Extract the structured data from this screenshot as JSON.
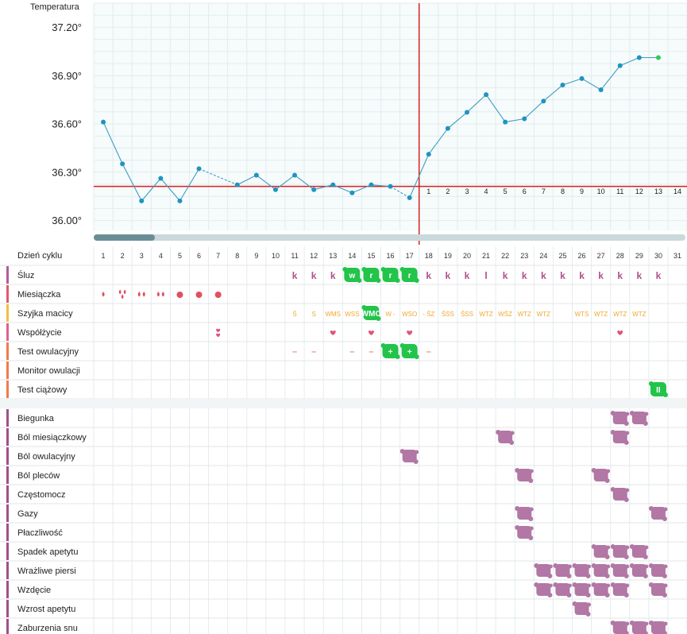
{
  "chart_data": {
    "type": "line",
    "ylabel": "Temperatura",
    "y_ticks": [
      "37.20°",
      "36.90°",
      "36.60°",
      "36.30°",
      "36.00°"
    ],
    "y_tick_values": [
      37.2,
      36.9,
      36.6,
      36.3,
      36.0
    ],
    "ylim": [
      35.93,
      37.33
    ],
    "x": [
      1,
      2,
      3,
      4,
      5,
      6,
      7,
      8,
      9,
      10,
      11,
      12,
      13,
      14,
      15,
      16,
      17,
      18,
      19,
      20,
      21,
      22,
      23,
      24,
      25,
      26,
      27,
      28,
      29,
      30,
      31
    ],
    "values": [
      36.61,
      36.35,
      36.12,
      36.26,
      36.12,
      36.32,
      null,
      36.22,
      36.28,
      36.19,
      36.28,
      36.19,
      36.22,
      36.17,
      36.22,
      36.21,
      36.14,
      36.41,
      36.57,
      36.67,
      36.78,
      36.61,
      36.63,
      36.74,
      36.84,
      36.88,
      36.81,
      36.96,
      37.01,
      37.01,
      null
    ],
    "dashed_segments": [
      [
        6,
        8
      ],
      [
        16,
        17
      ]
    ],
    "coverline": 36.21,
    "ovulation_day": 17,
    "post_ovulation_labels": [
      "1",
      "2",
      "3",
      "4",
      "5",
      "6",
      "7",
      "8",
      "9",
      "10",
      "11",
      "12",
      "13",
      "14"
    ],
    "line_color": "#3d9dbf",
    "point_color": "#1f93c3",
    "last_point_color": "#2ecc55",
    "marker_color": "#d62020",
    "grid": true
  },
  "scrollbar": {
    "thumb_color": "#6b8e96",
    "track_color": "#c9d9dc"
  },
  "table": {
    "header_label": "Dzień cyklu",
    "days": [
      "1",
      "2",
      "3",
      "4",
      "5",
      "6",
      "7",
      "8",
      "9",
      "10",
      "11",
      "12",
      "13",
      "14",
      "15",
      "16",
      "17",
      "18",
      "19",
      "20",
      "21",
      "22",
      "23",
      "24",
      "25",
      "26",
      "27",
      "28",
      "29",
      "30",
      "31"
    ],
    "rows": [
      {
        "label": "Śluz",
        "color": "#b05ca0"
      },
      {
        "label": "Miesiączka",
        "color": "#e05a6a"
      },
      {
        "label": "Szyjka macicy",
        "color": "#f0c040"
      },
      {
        "label": "Współżycie",
        "color": "#e06090"
      },
      {
        "label": "Test owulacyjny",
        "color": "#f07c4a"
      },
      {
        "label": "Monitor owulacji",
        "color": "#f07c4a"
      },
      {
        "label": "Test ciążowy",
        "color": "#f07c4a"
      }
    ],
    "symptom_rows": [
      {
        "label": "Biegunka",
        "color": "#a0508a"
      },
      {
        "label": "Ból miesiączkowy",
        "color": "#a0508a"
      },
      {
        "label": "Ból owulacyjny",
        "color": "#a0508a"
      },
      {
        "label": "Ból pleców",
        "color": "#a0508a"
      },
      {
        "label": "Częstomocz",
        "color": "#a0508a"
      },
      {
        "label": "Gazy",
        "color": "#a0508a"
      },
      {
        "label": "Płaczliwość",
        "color": "#a0508a"
      },
      {
        "label": "Spadek apetytu",
        "color": "#a0508a"
      },
      {
        "label": "Wrażliwe piersi",
        "color": "#a0508a"
      },
      {
        "label": "Wzdęcie",
        "color": "#a0508a"
      },
      {
        "label": "Wzrost apetytu",
        "color": "#a0508a"
      },
      {
        "label": "Zaburzenia snu",
        "color": "#a0508a"
      }
    ],
    "mucus": [
      [
        "11",
        "k"
      ],
      [
        "12",
        "k"
      ],
      [
        "13",
        "k"
      ],
      [
        "14",
        "w",
        "badge"
      ],
      [
        "15",
        "r",
        "badge"
      ],
      [
        "16",
        "r",
        "badge"
      ],
      [
        "17",
        "r",
        "badge"
      ],
      [
        "18",
        "k"
      ],
      [
        "19",
        "k"
      ],
      [
        "20",
        "k"
      ],
      [
        "21",
        "l"
      ],
      [
        "22",
        "k"
      ],
      [
        "23",
        "k"
      ],
      [
        "24",
        "k"
      ],
      [
        "25",
        "k"
      ],
      [
        "26",
        "k"
      ],
      [
        "27",
        "k"
      ],
      [
        "28",
        "k"
      ],
      [
        "29",
        "k"
      ],
      [
        "30",
        "k"
      ]
    ],
    "period": [
      [
        "1",
        "drop1"
      ],
      [
        "2",
        "drop3"
      ],
      [
        "3",
        "drop2"
      ],
      [
        "4",
        "drop2"
      ],
      [
        "5",
        "dot"
      ],
      [
        "6",
        "dot"
      ],
      [
        "7",
        "dot"
      ]
    ],
    "cervix": [
      [
        "11",
        "Ś"
      ],
      [
        "12",
        "S"
      ],
      [
        "13",
        "WMS"
      ],
      [
        "14",
        "WSS"
      ],
      [
        "15",
        "WMS"
      ],
      [
        "15",
        "WMO",
        "badge"
      ],
      [
        "16",
        "W -"
      ],
      [
        "17",
        "WSO"
      ],
      [
        "18",
        "- ŚZ"
      ],
      [
        "19",
        "ŚSS"
      ],
      [
        "20",
        "ŚSS"
      ],
      [
        "21",
        "WTZ"
      ],
      [
        "22",
        "WŚZ"
      ],
      [
        "23",
        "WTZ"
      ],
      [
        "24",
        "WTZ"
      ],
      [
        "26",
        "WTS"
      ],
      [
        "27",
        "WTZ"
      ],
      [
        "28",
        "WTZ"
      ],
      [
        "29",
        "WTZ"
      ]
    ],
    "intercourse": [
      [
        "7",
        "double"
      ],
      [
        "13",
        "heart"
      ],
      [
        "15",
        "heart"
      ],
      [
        "17",
        "heart"
      ],
      [
        "28",
        "heart"
      ]
    ],
    "ovulation_test": [
      [
        "11",
        "–"
      ],
      [
        "12",
        "–"
      ],
      [
        "14",
        "–"
      ],
      [
        "15",
        "–"
      ],
      [
        "16",
        "+",
        "badge"
      ],
      [
        "17",
        "+",
        "badge"
      ],
      [
        "18",
        "–"
      ]
    ],
    "pregnancy_test": [
      [
        "30",
        "II",
        "badge"
      ]
    ],
    "symptoms": {
      "Biegunka": [
        "28",
        "29"
      ],
      "Ból miesiączkowy": [
        "22",
        "28"
      ],
      "Ból owulacyjny": [
        "17"
      ],
      "Ból pleców": [
        "23",
        "27"
      ],
      "Częstomocz": [
        "28"
      ],
      "Gazy": [
        "23",
        "30"
      ],
      "Płaczliwość": [
        "23"
      ],
      "Spadek apetytu": [
        "27",
        "28",
        "29"
      ],
      "Wrażliwe piersi": [
        "24",
        "25",
        "26",
        "27",
        "28",
        "29",
        "30"
      ],
      "Wzdęcie": [
        "24",
        "25",
        "26",
        "27",
        "28",
        "30"
      ],
      "Wzrost apetytu": [
        "26"
      ],
      "Zaburzenia snu": [
        "28",
        "29",
        "30"
      ]
    },
    "colors": {
      "mucus_text": "#b0508a",
      "badge_green": "#22c44a",
      "cervix_text": "#f0a830",
      "heart": "#e0557a",
      "drop": "#e24f5f",
      "symptom": "#b277a5",
      "grid": "#e4ecee"
    }
  }
}
